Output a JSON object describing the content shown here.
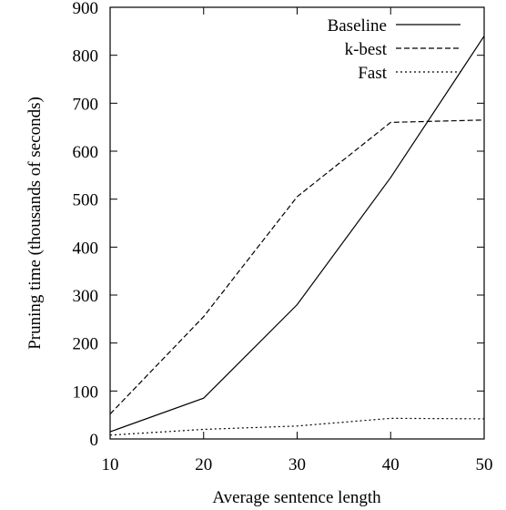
{
  "chart_data": {
    "type": "line",
    "xlabel": "Average sentence length",
    "ylabel": "Pruning time (thousands of seconds)",
    "x": [
      10,
      20,
      30,
      40,
      50
    ],
    "xlim": [
      10,
      50
    ],
    "ylim": [
      0,
      900
    ],
    "xticks": [
      "10",
      "20",
      "30",
      "40",
      "50"
    ],
    "yticks": [
      "0",
      "100",
      "200",
      "300",
      "400",
      "500",
      "600",
      "700",
      "800",
      "900"
    ],
    "grid": false,
    "legend_position": "top-right",
    "series": [
      {
        "name": "Baseline",
        "style": "solid",
        "values": [
          15,
          85,
          280,
          545,
          840
        ]
      },
      {
        "name": "k-best",
        "style": "dashed",
        "values": [
          52,
          255,
          505,
          660,
          665
        ]
      },
      {
        "name": "Fast",
        "style": "dotted",
        "values": [
          8,
          20,
          27,
          43,
          42
        ]
      }
    ],
    "line_color": "#000000"
  }
}
